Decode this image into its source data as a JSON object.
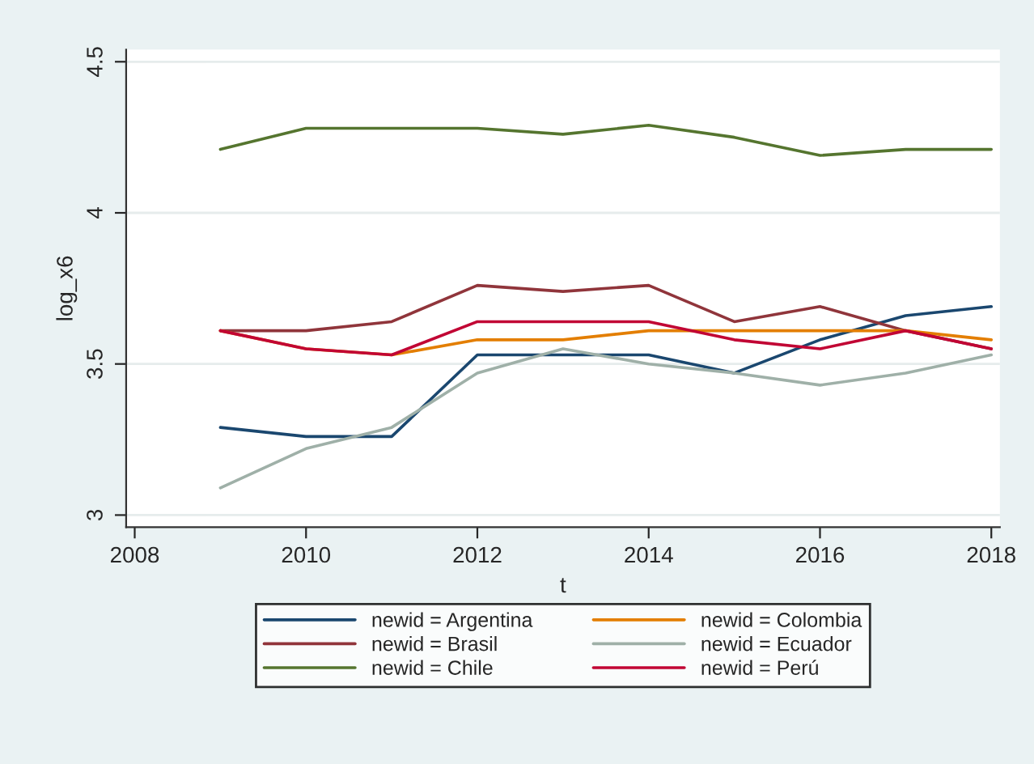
{
  "chart_data": {
    "type": "line",
    "xlabel": "t",
    "ylabel": "log_x6",
    "x": [
      2009,
      2010,
      2011,
      2012,
      2013,
      2014,
      2015,
      2016,
      2017,
      2018
    ],
    "series": [
      {
        "name": "newid = Argentina",
        "color": "#1a476f",
        "values": [
          3.29,
          3.26,
          3.26,
          3.53,
          3.53,
          3.53,
          3.47,
          3.58,
          3.66,
          3.69
        ]
      },
      {
        "name": "newid = Brasil",
        "color": "#90353b",
        "values": [
          3.61,
          3.61,
          3.64,
          3.76,
          3.74,
          3.76,
          3.64,
          3.69,
          3.61,
          3.55
        ]
      },
      {
        "name": "newid = Chile",
        "color": "#55752f",
        "values": [
          4.21,
          4.28,
          4.28,
          4.28,
          4.26,
          4.29,
          4.25,
          4.19,
          4.21,
          4.21
        ]
      },
      {
        "name": "newid = Colombia",
        "color": "#e37e00",
        "values": [
          3.61,
          3.55,
          3.53,
          3.58,
          3.58,
          3.61,
          3.61,
          3.61,
          3.61,
          3.58
        ]
      },
      {
        "name": "newid = Ecuador",
        "color": "#9fb0a8",
        "values": [
          3.09,
          3.22,
          3.29,
          3.47,
          3.55,
          3.5,
          3.47,
          3.43,
          3.47,
          3.53
        ]
      },
      {
        "name": "newid = Perú",
        "color": "#c10534",
        "values": [
          3.61,
          3.55,
          3.53,
          3.64,
          3.64,
          3.64,
          3.58,
          3.55,
          3.61,
          3.55
        ]
      }
    ],
    "xlim": [
      2007.9,
      2018.1
    ],
    "xticks": [
      2008,
      2010,
      2012,
      2014,
      2016,
      2018
    ],
    "ylim": [
      2.96,
      4.54
    ],
    "yticks": [
      3,
      3.5,
      4,
      4.5
    ],
    "grid": "y",
    "legend": "bottom",
    "marker": "none",
    "line_style": "solid"
  }
}
